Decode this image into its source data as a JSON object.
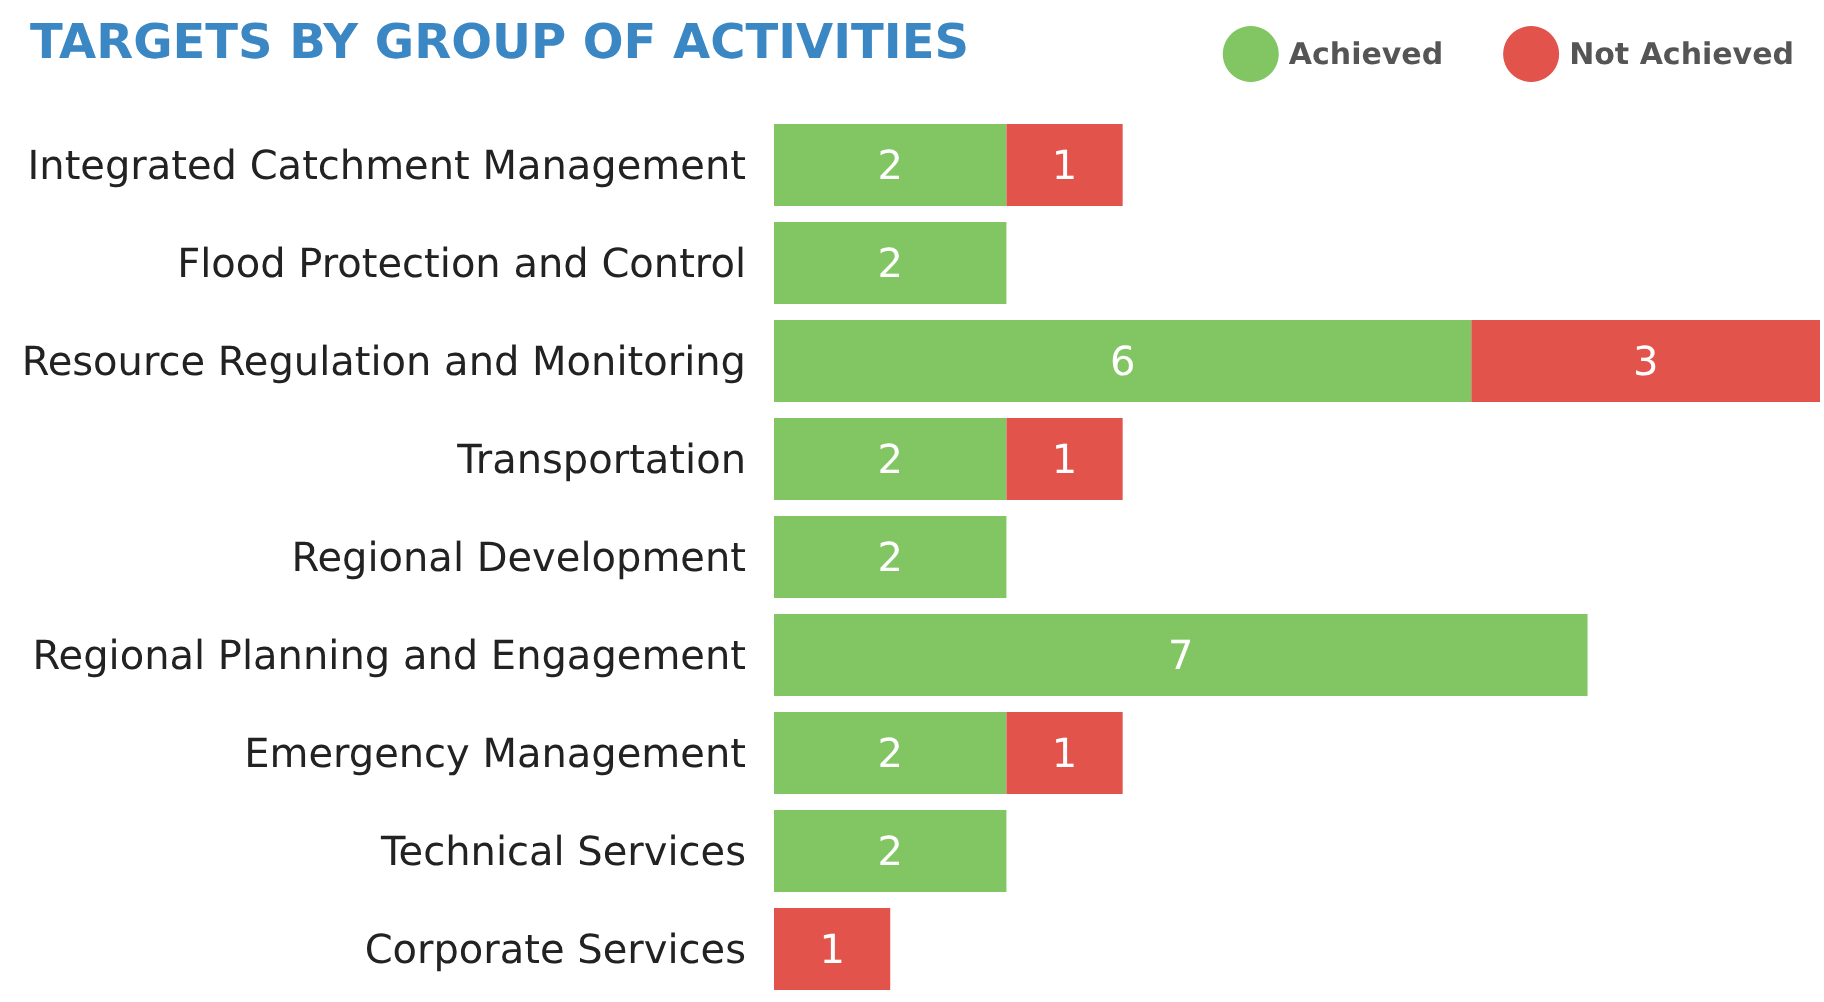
{
  "chart_data": {
    "type": "bar",
    "title": "TARGETS BY GROUP OF ACTIVITIES",
    "orientation": "horizontal",
    "stacked": true,
    "data_labels": true,
    "legend": "top right",
    "grid": false,
    "categories": [
      "Integrated Catchment Management",
      "Flood Protection and Control",
      "Resource Regulation and Monitoring",
      "Transportation",
      "Regional Development",
      "Regional Planning and Engagement",
      "Emergency Management",
      "Technical Services",
      "Corporate Services"
    ],
    "series": [
      {
        "name": "Achieved",
        "color": "#82c664",
        "values": [
          2,
          2,
          6,
          2,
          2,
          7,
          2,
          2,
          null
        ]
      },
      {
        "name": "Not Achieved",
        "color": "#e2534b",
        "values": [
          1,
          null,
          3,
          1,
          null,
          null,
          1,
          null,
          1
        ]
      }
    ]
  }
}
